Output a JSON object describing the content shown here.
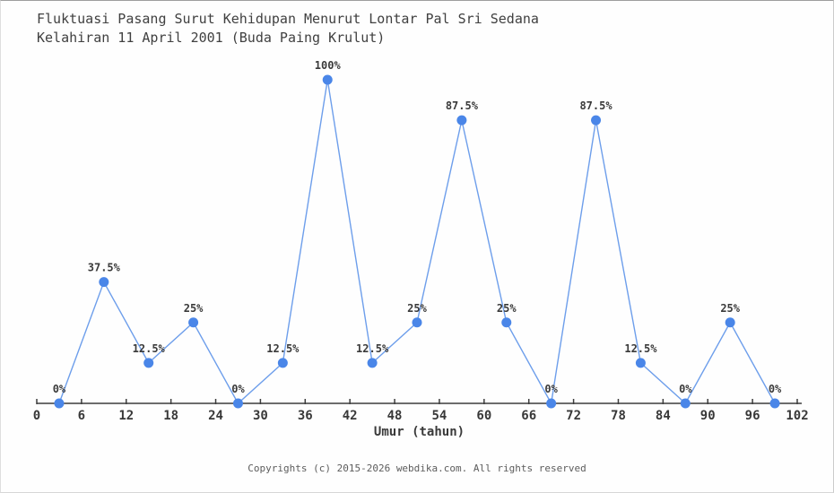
{
  "page": {
    "title_line1": "Fluktuasi Pasang Surut Kehidupan Menurut Lontar Pal Sri Sedana",
    "title_line2": "Kelahiran 11 April 2001 (Buda Paing Krulut)",
    "footer": "Copyrights (c) 2015-2026 webdika.com. All rights reserved"
  },
  "chart_data": {
    "type": "line",
    "title": "Fluktuasi Pasang Surut Kehidupan Menurut Lontar Pal Sri Sedana Kelahiran 11 April 2001 (Buda Paing Krulut)",
    "xlabel": "Umur (tahun)",
    "ylabel": "",
    "x": [
      3,
      9,
      15,
      21,
      27,
      33,
      39,
      45,
      51,
      57,
      63,
      69,
      75,
      81,
      87,
      93,
      99
    ],
    "values": [
      0,
      37.5,
      12.5,
      25,
      0,
      12.5,
      100,
      12.5,
      25,
      87.5,
      25,
      0,
      87.5,
      12.5,
      0,
      25,
      0
    ],
    "point_labels": [
      "0%",
      "37.5%",
      "12.5%",
      "25%",
      "0%",
      "12.5%",
      "100%",
      "12.5%",
      "25%",
      "87.5%",
      "25%",
      "0%",
      "87.5%",
      "12.5%",
      "0%",
      "25%",
      "0%"
    ],
    "x_ticks": [
      0,
      6,
      12,
      18,
      24,
      30,
      36,
      42,
      48,
      54,
      60,
      66,
      72,
      78,
      84,
      90,
      96,
      102
    ],
    "xlim": [
      0,
      102
    ],
    "ylim": [
      0,
      100
    ],
    "grid": false,
    "legend_position": "none",
    "y_axis_visible": false,
    "colors": {
      "marker": "#4a86e8",
      "line": "#6d9eeb",
      "axis": "#3c3c3c",
      "tick_text": "#383838",
      "label_text": "#3a3a3a"
    }
  }
}
